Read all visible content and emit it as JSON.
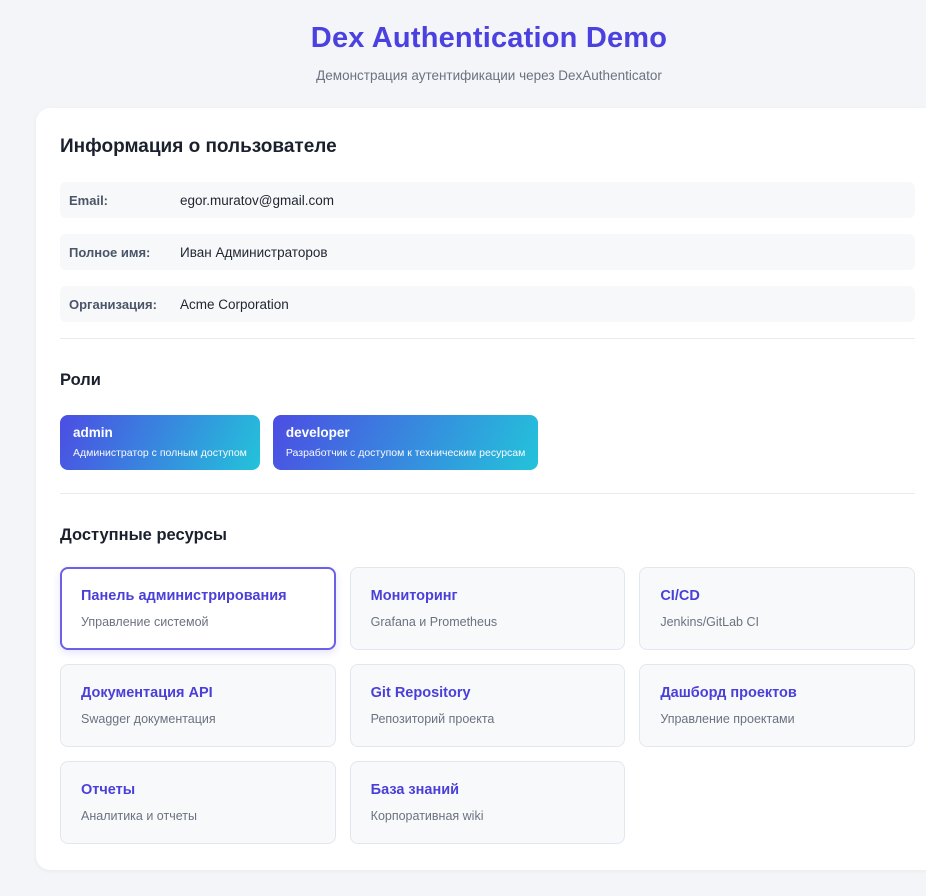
{
  "page": {
    "title": "Dex Authentication Demo",
    "subtitle": "Демонстрация аутентификации через DexAuthenticator"
  },
  "user_info": {
    "heading": "Информация о пользователе",
    "fields": [
      {
        "label": "Email:",
        "value": "egor.muratov@gmail.com"
      },
      {
        "label": "Полное имя:",
        "value": "Иван Администраторов"
      },
      {
        "label": "Организация:",
        "value": "Acme Corporation"
      }
    ]
  },
  "roles": {
    "heading": "Роли",
    "items": [
      {
        "name": "admin",
        "description": "Администратор с полным доступом"
      },
      {
        "name": "developer",
        "description": "Разработчик с доступом к техническим ресурсам"
      }
    ]
  },
  "resources": {
    "heading": "Доступные ресурсы",
    "items": [
      {
        "title": "Панель администрирования",
        "description": "Управление системой",
        "highlighted": true
      },
      {
        "title": "Мониторинг",
        "description": "Grafana и Prometheus",
        "highlighted": false
      },
      {
        "title": "CI/CD",
        "description": "Jenkins/GitLab CI",
        "highlighted": false
      },
      {
        "title": "Документация API",
        "description": "Swagger документация",
        "highlighted": false
      },
      {
        "title": "Git Repository",
        "description": "Репозиторий проекта",
        "highlighted": false
      },
      {
        "title": "Дашборд проектов",
        "description": "Управление проектами",
        "highlighted": false
      },
      {
        "title": "Отчеты",
        "description": "Аналитика и отчеты",
        "highlighted": false
      },
      {
        "title": "База знаний",
        "description": "Корпоративная wiki",
        "highlighted": false
      }
    ]
  },
  "colors": {
    "accent": "#4a41e0",
    "badge_gradient_start": "#4c4de3",
    "badge_gradient_end": "#23c3da",
    "highlighted_card_border": "#6c5fe8",
    "page_background": "#f4f5f8"
  }
}
